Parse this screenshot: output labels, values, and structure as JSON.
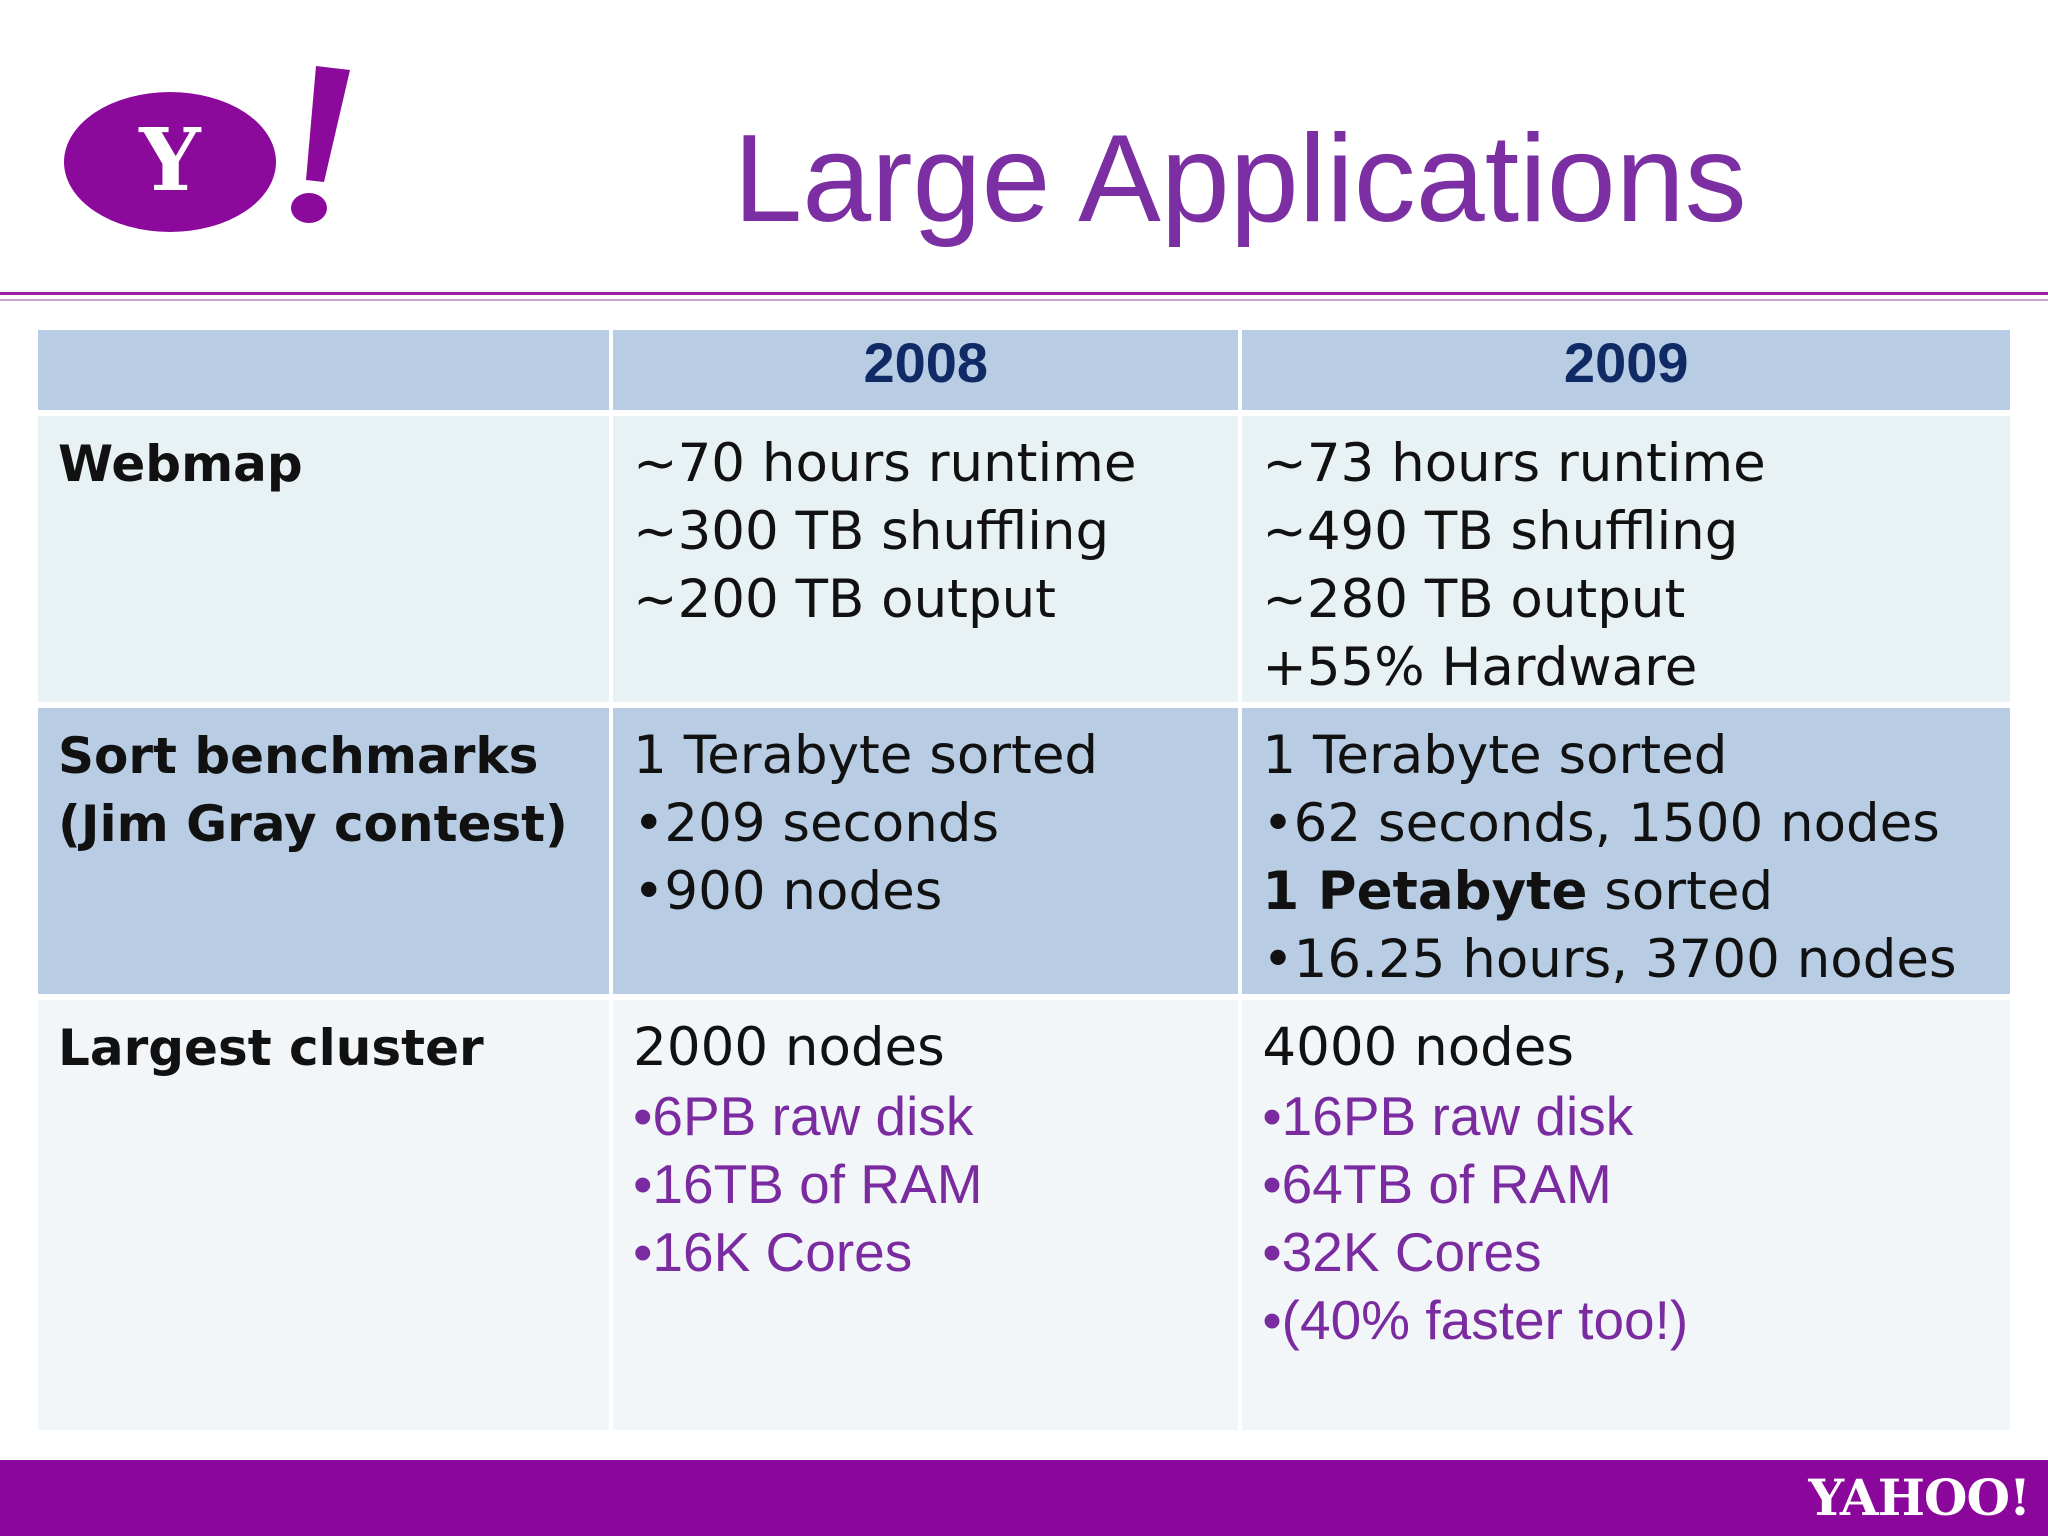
{
  "header": {
    "logo_text": "Y!",
    "title": "Large Applications"
  },
  "table": {
    "columns": [
      "",
      "2008",
      "2009"
    ],
    "rows": [
      {
        "label_lines": [
          "Webmap"
        ],
        "c2008": [
          "~70 hours runtime",
          "~300 TB shuffling",
          "~200 TB output"
        ],
        "c2009": [
          "~73 hours runtime",
          "~490 TB shuffling",
          "~280 TB output",
          "+55% Hardware"
        ]
      },
      {
        "label_lines": [
          "Sort benchmarks",
          "(Jim Gray contest)"
        ],
        "c2008": [
          "1 Terabyte sorted",
          "•209 seconds",
          "•900 nodes"
        ],
        "c2009": [
          "1 Terabyte sorted",
          "•62 seconds, 1500 nodes",
          {
            "bold": "1 Petabyte",
            "rest": " sorted"
          },
          "•16.25 hours, 3700 nodes"
        ]
      },
      {
        "label_lines": [
          "Largest cluster"
        ],
        "c2008": [
          "2000 nodes",
          "•6PB raw disk",
          "•16TB of RAM",
          "•16K Cores"
        ],
        "c2009": [
          "4000 nodes",
          "•16PB raw disk",
          "•64TB of RAM",
          "•32K Cores",
          "•(40% faster too!)"
        ]
      }
    ]
  },
  "footer": {
    "brand": "YAHOO!"
  },
  "colors": {
    "title": "#7b2fa3",
    "footer_bar": "#8b069a",
    "header_cell": "#b8cde4",
    "year_text": "#0f2a64",
    "accent_text": "#7a2ba0"
  }
}
